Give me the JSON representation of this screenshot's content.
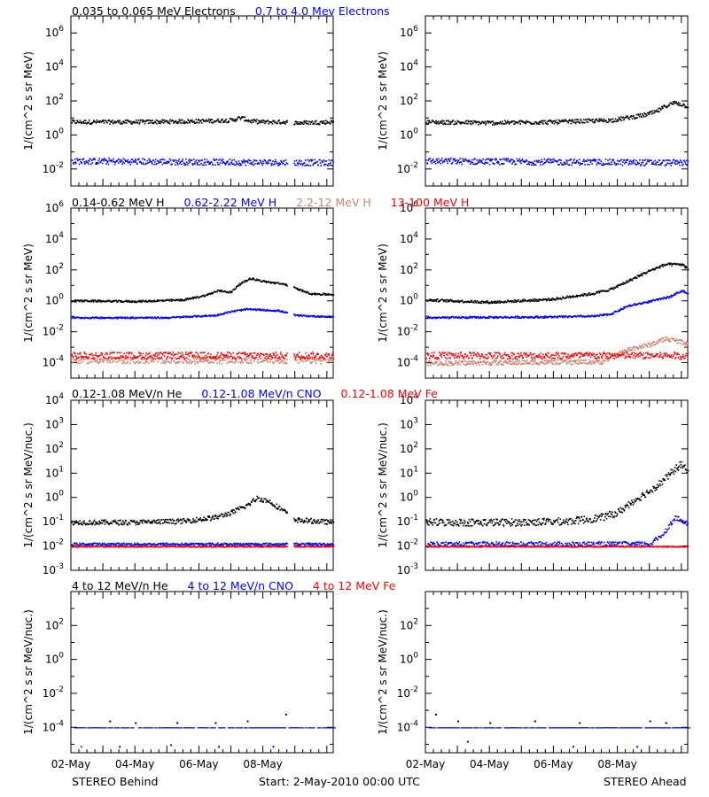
{
  "colors": {
    "black": "#000000",
    "blue": "#0000ff",
    "tan": "#c8826e",
    "red": "#ff0000",
    "gray": "#888888"
  },
  "footer": {
    "left": "STEREO Behind",
    "center": "Start:  2-May-2010 00:00 UTC",
    "right": "STEREO Ahead"
  },
  "rows": [
    {
      "legend": [
        {
          "text": "0.035 to 0.065 MeV Electrons",
          "color": "#000000"
        },
        {
          "text": "0.7 to 4.0 Mev Electrons",
          "color": "#0000ff"
        }
      ]
    },
    {
      "legend": [
        {
          "text": "0.14-0.62 MeV H",
          "color": "#000000"
        },
        {
          "text": "0.62-2.22 MeV H",
          "color": "#0000ff"
        },
        {
          "text": "2.2-12 MeV H",
          "color": "#c8826e"
        },
        {
          "text": "13-100 MeV H",
          "color": "#ff0000"
        }
      ]
    },
    {
      "legend": [
        {
          "text": "0.12-1.08 MeV/n He",
          "color": "#000000"
        },
        {
          "text": "0.12-1.08 MeV/n CNO",
          "color": "#0000ff"
        },
        {
          "text": "0.12-1.08 MeV Fe",
          "color": "#ff0000"
        }
      ]
    },
    {
      "legend": [
        {
          "text": "4 to 12 MeV/n He",
          "color": "#000000"
        },
        {
          "text": "4 to 12 MeV/n CNO",
          "color": "#0000ff"
        },
        {
          "text": "4 to 12 MeV Fe",
          "color": "#ff0000"
        }
      ]
    }
  ],
  "chart_data": [
    {
      "id": "electrons-behind",
      "type": "scatter",
      "row": 0,
      "col": 0,
      "ylabel": "1/(cm^2 s sr MeV)",
      "yscale": "log",
      "ylim_exp": [
        -3,
        7
      ],
      "ytick_exps": [
        -2,
        0,
        2,
        4,
        6
      ],
      "x_unit": "days from 02-May-2010",
      "xlim": [
        0,
        8.2
      ],
      "gap": [
        6.75,
        6.95
      ],
      "series": [
        {
          "color": "#000000",
          "x": [
            0,
            1,
            2,
            3,
            4,
            5,
            5.3,
            5.6,
            6,
            6.7,
            7,
            8.2
          ],
          "y_exp": [
            0.8,
            0.8,
            0.8,
            0.82,
            0.85,
            0.9,
            1.05,
            0.85,
            0.8,
            0.8,
            0.75,
            0.8
          ],
          "scatter": 0.12
        },
        {
          "color": "#0000ff",
          "x": [
            0,
            8.2
          ],
          "y_exp": [
            -1.5,
            -1.6
          ],
          "scatter": 0.18
        }
      ]
    },
    {
      "id": "electrons-ahead",
      "type": "scatter",
      "row": 0,
      "col": 1,
      "ylabel": "1/(cm^2 s sr MeV)",
      "yscale": "log",
      "ylim_exp": [
        -3,
        7
      ],
      "ytick_exps": [
        -2,
        0,
        2,
        4,
        6
      ],
      "x_unit": "days from 02-May-2010",
      "xlim": [
        0,
        8.2
      ],
      "series": [
        {
          "color": "#000000",
          "x": [
            0,
            2,
            4,
            5,
            5.8,
            6.3,
            6.8,
            7.2,
            7.5,
            7.8,
            8.2
          ],
          "y_exp": [
            0.8,
            0.75,
            0.8,
            0.85,
            0.9,
            1.05,
            1.2,
            1.4,
            1.75,
            1.95,
            1.7
          ],
          "scatter": 0.12
        },
        {
          "color": "#0000ff",
          "x": [
            0,
            8.2
          ],
          "y_exp": [
            -1.5,
            -1.6
          ],
          "scatter": 0.18
        }
      ]
    },
    {
      "id": "protons-behind",
      "type": "scatter",
      "row": 1,
      "col": 0,
      "ylabel": "1/(cm^2 s sr MeV)",
      "yscale": "log",
      "ylim_exp": [
        -5,
        6
      ],
      "ytick_exps": [
        -4,
        -2,
        0,
        2,
        4,
        6
      ],
      "x_unit": "days from 02-May-2010",
      "xlim": [
        0,
        8.2
      ],
      "gap": [
        6.75,
        6.95
      ],
      "series": [
        {
          "color": "#000000",
          "x": [
            0,
            2,
            3.5,
            4.2,
            4.6,
            5,
            5.2,
            5.6,
            6,
            6.7,
            7,
            7.5,
            8.2
          ],
          "y_exp": [
            0.05,
            0.0,
            0.1,
            0.4,
            0.7,
            0.6,
            1.05,
            1.5,
            1.3,
            1.1,
            0.85,
            0.5,
            0.45
          ],
          "scatter": 0.06
        },
        {
          "color": "#0000ff",
          "x": [
            0,
            3,
            4.5,
            5,
            5.5,
            6.5,
            7,
            8.2
          ],
          "y_exp": [
            -1.05,
            -1.05,
            -0.9,
            -0.65,
            -0.5,
            -0.6,
            -0.9,
            -1.0
          ],
          "scatter": 0.05
        },
        {
          "color": "#c8826e",
          "x": [
            0,
            8.2
          ],
          "y_exp": [
            -3.8,
            -3.8
          ],
          "scatter": 0.22
        },
        {
          "color": "#ff0000",
          "x": [
            0,
            8.2
          ],
          "y_exp": [
            -3.5,
            -3.5
          ],
          "scatter": 0.22
        }
      ]
    },
    {
      "id": "protons-ahead",
      "type": "scatter",
      "row": 1,
      "col": 1,
      "ylabel": "1/(cm^2 s sr MeV)",
      "yscale": "log",
      "ylim_exp": [
        -5,
        6
      ],
      "ytick_exps": [
        -4,
        -2,
        0,
        2,
        4,
        6
      ],
      "x_unit": "days from 02-May-2010",
      "xlim": [
        0,
        8.2
      ],
      "series": [
        {
          "color": "#000000",
          "x": [
            0,
            2,
            4,
            4.8,
            5.2,
            5.8,
            6.3,
            7,
            7.5,
            8.0,
            8.2
          ],
          "y_exp": [
            0.1,
            -0.05,
            0.15,
            0.4,
            0.5,
            0.8,
            1.3,
            2.0,
            2.4,
            2.4,
            2.1
          ],
          "scatter": 0.08
        },
        {
          "color": "#0000ff",
          "x": [
            0,
            4,
            5.3,
            5.8,
            6.3,
            7,
            7.6,
            8.0,
            8.2
          ],
          "y_exp": [
            -1.05,
            -1.0,
            -0.95,
            -0.8,
            -0.3,
            0.0,
            0.3,
            0.7,
            0.5
          ],
          "scatter": 0.06
        },
        {
          "color": "#c8826e",
          "x": [
            0,
            5.5,
            6.0,
            6.5,
            7.0,
            7.5,
            8.2
          ],
          "y_exp": [
            -4.0,
            -3.9,
            -3.4,
            -3.0,
            -2.8,
            -2.4,
            -2.7
          ],
          "scatter": 0.15
        },
        {
          "color": "#ff0000",
          "x": [
            0,
            8.2
          ],
          "y_exp": [
            -3.5,
            -3.5
          ],
          "scatter": 0.22
        }
      ]
    },
    {
      "id": "heavy-low-behind",
      "type": "scatter",
      "row": 2,
      "col": 0,
      "ylabel": "1/(cm^2 s sr MeV/nuc.)",
      "yscale": "log",
      "ylim_exp": [
        -3,
        4
      ],
      "ytick_exps": [
        -3,
        -2,
        -1,
        0,
        1,
        2,
        3,
        4
      ],
      "x_unit": "days from 02-May-2010",
      "xlim": [
        0,
        8.2
      ],
      "gap": [
        6.75,
        6.95
      ],
      "series": [
        {
          "color": "#000000",
          "x": [
            0,
            2,
            3.5,
            4.5,
            5.0,
            5.5,
            5.8,
            6.2,
            6.6,
            6.7,
            7,
            8.2
          ],
          "y_exp": [
            -1.0,
            -1.0,
            -0.95,
            -0.8,
            -0.6,
            -0.3,
            0.0,
            -0.15,
            -0.5,
            -0.6,
            -0.9,
            -1.0
          ],
          "scatter": 0.1
        },
        {
          "color": "#0000ff",
          "x": [
            0,
            8.2
          ],
          "y_exp": [
            -1.9,
            -1.9
          ],
          "scatter": 0.05
        },
        {
          "color": "#ff0000",
          "x": [
            0,
            8.2
          ],
          "y_exp": [
            -2.0,
            -2.0
          ],
          "scatter": 0.02
        }
      ]
    },
    {
      "id": "heavy-low-ahead",
      "type": "scatter",
      "row": 2,
      "col": 1,
      "ylabel": "1/(cm^2 s sr MeV/nuc.)",
      "yscale": "log",
      "ylim_exp": [
        -3,
        4
      ],
      "ytick_exps": [
        -3,
        -2,
        -1,
        0,
        1,
        2,
        3,
        4
      ],
      "x_unit": "days from 02-May-2010",
      "xlim": [
        0,
        8.2
      ],
      "series": [
        {
          "color": "#000000",
          "x": [
            0,
            3,
            4.5,
            5.5,
            6,
            6.5,
            7,
            7.4,
            7.8,
            8.0,
            8.2
          ],
          "y_exp": [
            -1.0,
            -1.0,
            -0.95,
            -0.8,
            -0.6,
            -0.1,
            0.3,
            0.7,
            1.2,
            1.4,
            1.0
          ],
          "scatter": 0.15
        },
        {
          "color": "#0000ff",
          "x": [
            0,
            7.0,
            7.4,
            7.8,
            8.2
          ],
          "y_exp": [
            -1.9,
            -1.9,
            -1.5,
            -0.8,
            -1.1
          ],
          "scatter": 0.1
        },
        {
          "color": "#ff0000",
          "x": [
            0,
            8.2
          ],
          "y_exp": [
            -2.0,
            -2.0
          ],
          "scatter": 0.02
        }
      ]
    },
    {
      "id": "heavy-high-behind",
      "type": "scatter",
      "row": 3,
      "col": 0,
      "ylabel": "1/(cm^2 s sr MeV/nuc.)",
      "yscale": "log",
      "ylim_exp": [
        -5.5,
        4
      ],
      "ytick_exps": [
        -4,
        -2,
        0,
        2
      ],
      "x_unit": "days from 02-May-2010",
      "xlim": [
        0,
        8.2
      ],
      "background_exp": -4,
      "points": [
        {
          "color": "#000000",
          "x": 1.2,
          "y_exp": -3.6
        },
        {
          "color": "#000000",
          "x": 2.0,
          "y_exp": -3.7
        },
        {
          "color": "#000000",
          "x": 3.3,
          "y_exp": -3.7
        },
        {
          "color": "#000000",
          "x": 4.5,
          "y_exp": -3.7
        },
        {
          "color": "#000000",
          "x": 5.5,
          "y_exp": -3.6
        },
        {
          "color": "#000000",
          "x": 6.7,
          "y_exp": -3.2
        },
        {
          "color": "#0000ff",
          "x": 1.5,
          "y_exp": -5.1
        },
        {
          "color": "#0000ff",
          "x": 3.1,
          "y_exp": -5.0
        },
        {
          "color": "#0000ff",
          "x": 4.6,
          "y_exp": -5.1
        },
        {
          "color": "#0000ff",
          "x": 6.3,
          "y_exp": -5.1
        },
        {
          "color": "#ff0000",
          "x": 0.3,
          "y_exp": -5.1
        }
      ]
    },
    {
      "id": "heavy-high-ahead",
      "type": "scatter",
      "row": 3,
      "col": 1,
      "ylabel": "1/(cm^2 s sr MeV/nuc.)",
      "yscale": "log",
      "ylim_exp": [
        -5.5,
        4
      ],
      "ytick_exps": [
        -4,
        -2,
        0,
        2
      ],
      "x_unit": "days from 02-May-2010",
      "xlim": [
        0,
        8.2
      ],
      "background_exp": -4,
      "points": [
        {
          "color": "#000000",
          "x": 0.3,
          "y_exp": -3.2
        },
        {
          "color": "#000000",
          "x": 1.0,
          "y_exp": -3.6
        },
        {
          "color": "#000000",
          "x": 2.0,
          "y_exp": -3.7
        },
        {
          "color": "#000000",
          "x": 3.4,
          "y_exp": -3.6
        },
        {
          "color": "#000000",
          "x": 4.8,
          "y_exp": -3.7
        },
        {
          "color": "#000000",
          "x": 7.0,
          "y_exp": -3.6
        },
        {
          "color": "#000000",
          "x": 7.5,
          "y_exp": -3.7
        },
        {
          "color": "#0000ff",
          "x": 1.3,
          "y_exp": -4.8
        },
        {
          "color": "#0000ff",
          "x": 4.6,
          "y_exp": -5.1
        },
        {
          "color": "#0000ff",
          "x": 6.6,
          "y_exp": -5.1
        }
      ]
    }
  ],
  "xaxis": {
    "ticks": [
      {
        "day": 0,
        "label": "02-May"
      },
      {
        "day": 2,
        "label": "04-May"
      },
      {
        "day": 4,
        "label": "06-May"
      },
      {
        "day": 6,
        "label": "08-May"
      }
    ]
  }
}
